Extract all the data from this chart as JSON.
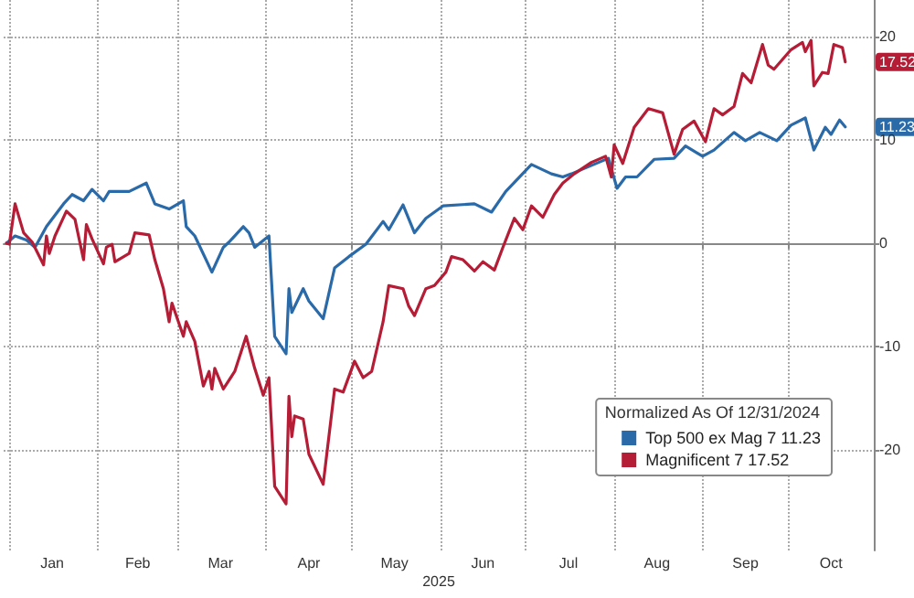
{
  "chart_data": {
    "type": "line",
    "legend_title": "Normalized As Of 12/31/2024",
    "xlabel": "2025",
    "xlim": [
      "2024-12-30",
      "2025-10-31"
    ],
    "xticks": [
      {
        "value": "2025-01-01",
        "label": null
      },
      {
        "value": "2025-01-16",
        "label": "Jan"
      },
      {
        "value": "2025-02-01",
        "label": null
      },
      {
        "value": "2025-02-15",
        "label": "Feb"
      },
      {
        "value": "2025-03-01",
        "label": null
      },
      {
        "value": "2025-03-16",
        "label": "Mar"
      },
      {
        "value": "2025-04-01",
        "label": null
      },
      {
        "value": "2025-04-16",
        "label": "Apr"
      },
      {
        "value": "2025-05-01",
        "label": null
      },
      {
        "value": "2025-05-16",
        "label": "May"
      },
      {
        "value": "2025-06-01",
        "label": null
      },
      {
        "value": "2025-06-16",
        "label": "Jun"
      },
      {
        "value": "2025-07-01",
        "label": null
      },
      {
        "value": "2025-07-16",
        "label": "Jul"
      },
      {
        "value": "2025-08-01",
        "label": null
      },
      {
        "value": "2025-08-16",
        "label": "Aug"
      },
      {
        "value": "2025-09-01",
        "label": null
      },
      {
        "value": "2025-09-16",
        "label": "Sep"
      },
      {
        "value": "2025-10-01",
        "label": null
      },
      {
        "value": "2025-10-16",
        "label": "Oct"
      }
    ],
    "ylim": [
      -29.7,
      23.5
    ],
    "yticks": [
      -20,
      -10,
      0,
      10,
      20
    ],
    "grid": true,
    "legend": "bottom right",
    "marker": "none",
    "line_style": "solid",
    "annotations": [
      {
        "text": "11.23",
        "x": "2025-10-21",
        "y": 11.23
      },
      {
        "text": "17.52",
        "x": "2025-10-21",
        "y": 17.52
      }
    ],
    "series": [
      {
        "name": "Top 500 ex Mag 7 11.23",
        "color": "#2a6aa8",
        "x": [
          "2024-12-31",
          "2025-01-03",
          "2025-01-07",
          "2025-01-10",
          "2025-01-14",
          "2025-01-20",
          "2025-01-23",
          "2025-01-27",
          "2025-01-30",
          "2025-02-03",
          "2025-02-05",
          "2025-02-12",
          "2025-02-18",
          "2025-02-21",
          "2025-02-26",
          "2025-03-03",
          "2025-03-04",
          "2025-03-07",
          "2025-03-13",
          "2025-03-17",
          "2025-03-19",
          "2025-03-24",
          "2025-03-26",
          "2025-03-28",
          "2025-04-02",
          "2025-04-04",
          "2025-04-08",
          "2025-04-09",
          "2025-04-10",
          "2025-04-14",
          "2025-04-16",
          "2025-04-21",
          "2025-04-25",
          "2025-04-30",
          "2025-05-06",
          "2025-05-12",
          "2025-05-14",
          "2025-05-19",
          "2025-05-23",
          "2025-05-27",
          "2025-06-02",
          "2025-06-13",
          "2025-06-19",
          "2025-06-24",
          "2025-07-03",
          "2025-07-10",
          "2025-07-14",
          "2025-07-17",
          "2025-07-30",
          "2025-08-02",
          "2025-08-05",
          "2025-08-09",
          "2025-08-15",
          "2025-08-22",
          "2025-08-26",
          "2025-09-01",
          "2025-09-05",
          "2025-09-12",
          "2025-09-16",
          "2025-09-21",
          "2025-09-27",
          "2025-10-02",
          "2025-10-07",
          "2025-10-10",
          "2025-10-14",
          "2025-10-16",
          "2025-10-19",
          "2025-10-21"
        ],
        "values": [
          0,
          0.7,
          0.3,
          -0.4,
          1.6,
          3.8,
          4.7,
          4.1,
          5.2,
          4.1,
          5.0,
          5.0,
          5.8,
          3.8,
          3.3,
          4.1,
          1.6,
          0.7,
          -2.8,
          -0.4,
          0.1,
          1.6,
          1.0,
          -0.4,
          0.7,
          -9.0,
          -10.7,
          -4.4,
          -6.7,
          -4.4,
          -5.6,
          -7.3,
          -2.4,
          -1.3,
          -0.1,
          2.1,
          1.3,
          3.7,
          1.0,
          2.4,
          3.6,
          3.8,
          3.0,
          5.0,
          7.6,
          6.7,
          6.4,
          6.7,
          8.2,
          5.3,
          6.4,
          6.4,
          8.1,
          8.2,
          9.4,
          8.4,
          9.0,
          10.7,
          9.9,
          10.7,
          9.9,
          11.4,
          12.1,
          9.0,
          11.2,
          10.5,
          11.9,
          11.23
        ]
      },
      {
        "name": "Magnificent 7 17.52",
        "color": "#b51c35",
        "x": [
          "2024-12-31",
          "2025-01-01",
          "2025-01-03",
          "2025-01-06",
          "2025-01-09",
          "2025-01-13",
          "2025-01-14",
          "2025-01-15",
          "2025-01-17",
          "2025-01-21",
          "2025-01-24",
          "2025-01-27",
          "2025-01-28",
          "2025-01-30",
          "2025-02-03",
          "2025-02-04",
          "2025-02-06",
          "2025-02-07",
          "2025-02-12",
          "2025-02-14",
          "2025-02-19",
          "2025-02-21",
          "2025-02-24",
          "2025-02-26",
          "2025-02-27",
          "2025-03-03",
          "2025-03-04",
          "2025-03-07",
          "2025-03-10",
          "2025-03-12",
          "2025-03-13",
          "2025-03-14",
          "2025-03-17",
          "2025-03-21",
          "2025-03-25",
          "2025-03-28",
          "2025-03-31",
          "2025-04-02",
          "2025-04-04",
          "2025-04-08",
          "2025-04-09",
          "2025-04-10",
          "2025-04-11",
          "2025-04-14",
          "2025-04-16",
          "2025-04-21",
          "2025-04-25",
          "2025-04-28",
          "2025-05-02",
          "2025-05-05",
          "2025-05-08",
          "2025-05-12",
          "2025-05-14",
          "2025-05-19",
          "2025-05-21",
          "2025-05-23",
          "2025-05-27",
          "2025-05-30",
          "2025-06-03",
          "2025-06-05",
          "2025-06-09",
          "2025-06-13",
          "2025-06-16",
          "2025-06-20",
          "2025-06-23",
          "2025-06-27",
          "2025-06-30",
          "2025-07-03",
          "2025-07-07",
          "2025-07-11",
          "2025-07-14",
          "2025-07-18",
          "2025-07-24",
          "2025-07-29",
          "2025-07-31",
          "2025-08-01",
          "2025-08-04",
          "2025-08-08",
          "2025-08-13",
          "2025-08-18",
          "2025-08-22",
          "2025-08-25",
          "2025-08-29",
          "2025-09-02",
          "2025-09-05",
          "2025-09-08",
          "2025-09-12",
          "2025-09-15",
          "2025-09-18",
          "2025-09-22",
          "2025-09-24",
          "2025-09-26",
          "2025-10-02",
          "2025-10-06",
          "2025-10-07",
          "2025-10-09",
          "2025-10-10",
          "2025-10-13",
          "2025-10-15",
          "2025-10-17",
          "2025-10-20",
          "2025-10-21"
        ],
        "values": [
          0,
          -0.1,
          3.8,
          1.0,
          0.1,
          -2.1,
          0.7,
          -1.0,
          0.7,
          3.1,
          2.3,
          -1.6,
          1.8,
          0.4,
          -2.0,
          -0.4,
          -0.1,
          -1.8,
          -1.0,
          1.0,
          0.8,
          -1.6,
          -4.4,
          -7.6,
          -5.8,
          -9.0,
          -7.6,
          -9.5,
          -13.8,
          -12.4,
          -14.1,
          -12.1,
          -14.1,
          -12.4,
          -9.0,
          -12.1,
          -14.7,
          -13.0,
          -23.5,
          -25.2,
          -14.8,
          -18.7,
          -16.7,
          -17.0,
          -20.4,
          -23.3,
          -14.1,
          -14.4,
          -11.4,
          -13.0,
          -12.4,
          -7.6,
          -4.1,
          -4.4,
          -6.1,
          -7.0,
          -4.4,
          -4.1,
          -2.8,
          -1.3,
          -1.6,
          -2.7,
          -1.8,
          -2.6,
          -0.4,
          2.4,
          1.3,
          3.6,
          2.5,
          4.7,
          5.8,
          6.7,
          7.8,
          8.4,
          6.4,
          9.5,
          7.7,
          11.2,
          13.0,
          12.6,
          8.6,
          11.0,
          11.8,
          9.8,
          13.0,
          12.4,
          13.2,
          16.4,
          15.5,
          19.2,
          17.2,
          16.8,
          18.7,
          19.4,
          18.5,
          19.6,
          15.2,
          16.5,
          16.4,
          19.2,
          18.9,
          17.52
        ]
      }
    ]
  }
}
